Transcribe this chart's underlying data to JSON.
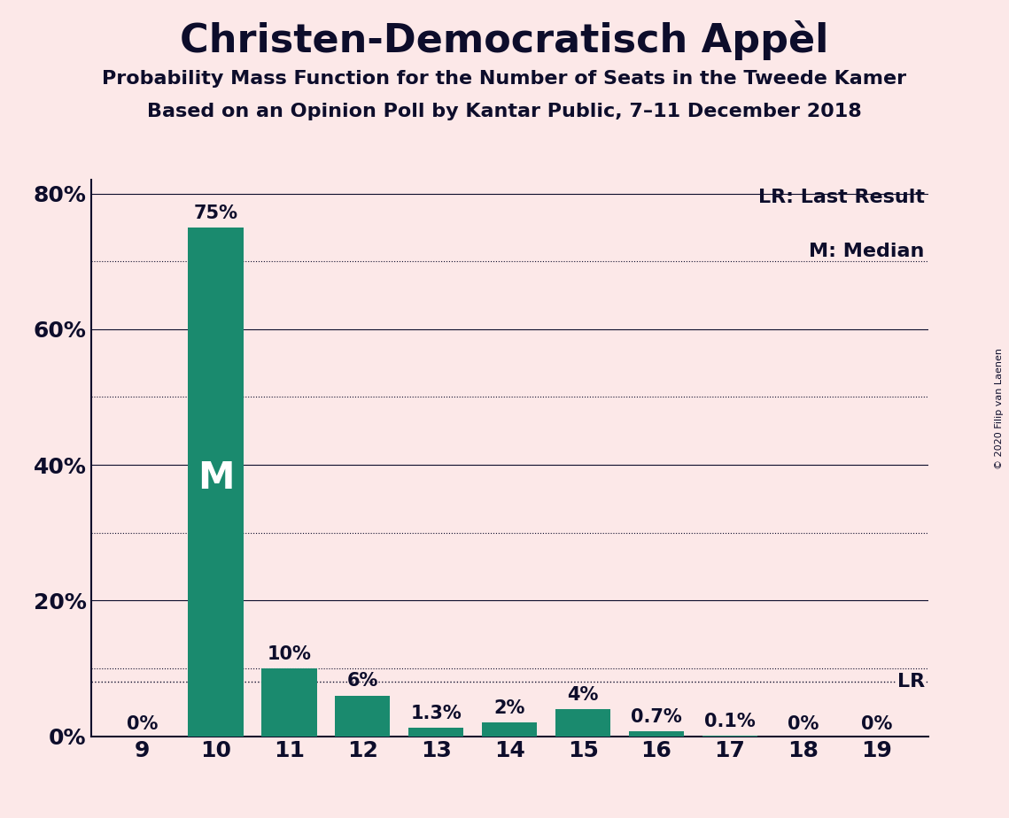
{
  "title": "Christen-Democratisch Appèl",
  "subtitle1": "Probability Mass Function for the Number of Seats in the Tweede Kamer",
  "subtitle2": "Based on an Opinion Poll by Kantar Public, 7–11 December 2018",
  "copyright": "© 2020 Filip van Laenen",
  "seats": [
    9,
    10,
    11,
    12,
    13,
    14,
    15,
    16,
    17,
    18,
    19
  ],
  "probabilities": [
    0.0,
    75.0,
    10.0,
    6.0,
    1.3,
    2.0,
    4.0,
    0.7,
    0.1,
    0.0,
    0.0
  ],
  "bar_color": "#1a8a6e",
  "background_color": "#fce8e8",
  "text_color": "#0d0d2b",
  "median_seat": 10,
  "last_result_pct": 8.0,
  "yticks": [
    0,
    20,
    40,
    60,
    80
  ],
  "dotted_gridlines": [
    10,
    30,
    50,
    70
  ],
  "solid_gridlines": [
    20,
    40,
    60,
    80
  ],
  "ylim_max": 82,
  "xlim_min": 8.3,
  "xlim_max": 19.7,
  "legend_lr": "LR: Last Result",
  "legend_m": "M: Median",
  "bar_labels": [
    "0%",
    "75%",
    "10%",
    "6%",
    "1.3%",
    "2%",
    "4%",
    "0.7%",
    "0.1%",
    "0%",
    "0%"
  ],
  "bar_label_fontsize": 15,
  "axis_tick_fontsize": 18,
  "title_fontsize": 32,
  "subtitle_fontsize": 16,
  "legend_fontsize": 16,
  "m_fontsize": 30,
  "lr_fontsize": 16,
  "copyright_fontsize": 8,
  "bar_width": 0.75
}
